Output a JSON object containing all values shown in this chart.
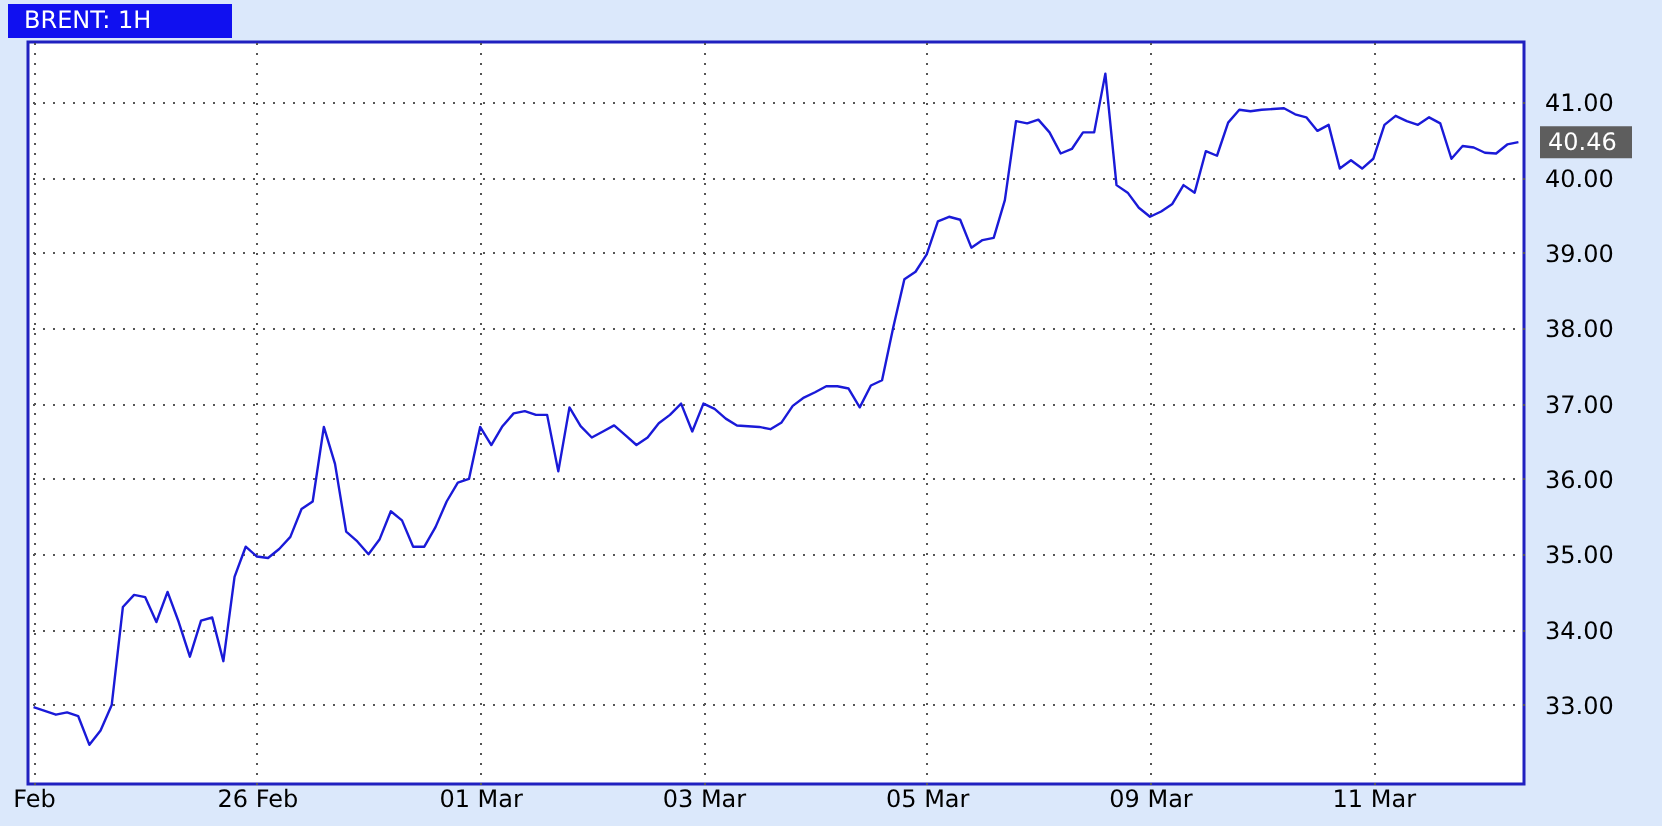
{
  "chart_data": {
    "type": "line",
    "title": "BRENT: 1H",
    "categories": [
      "Feb",
      null,
      null,
      null,
      null,
      null,
      null,
      null,
      null,
      null,
      null,
      null,
      null,
      null,
      null,
      null,
      null,
      null,
      null,
      null,
      "26 Feb",
      null,
      null,
      null,
      null,
      null,
      null,
      null,
      null,
      null,
      null,
      null,
      null,
      null,
      null,
      null,
      null,
      null,
      null,
      null,
      "01 Mar",
      null,
      null,
      null,
      null,
      null,
      null,
      null,
      null,
      null,
      null,
      null,
      null,
      null,
      null,
      null,
      null,
      null,
      null,
      null,
      "03 Mar",
      null,
      null,
      null,
      null,
      null,
      null,
      null,
      null,
      null,
      null,
      null,
      null,
      null,
      null,
      null,
      null,
      null,
      null,
      null,
      "05 Mar",
      null,
      null,
      null,
      null,
      null,
      null,
      null,
      null,
      null,
      null,
      null,
      null,
      null,
      null,
      null,
      null,
      null,
      null,
      null,
      "09 Mar",
      null,
      null,
      null,
      null,
      null,
      null,
      null,
      null,
      null,
      null,
      null,
      null,
      null,
      null,
      null,
      null,
      null,
      null,
      null,
      "11 Mar",
      null,
      null,
      null,
      null,
      null,
      null,
      null,
      null,
      null,
      null,
      null,
      null,
      null
    ],
    "series": [
      {
        "color": "#1a1ad8",
        "values": [
          32.97,
          32.92,
          32.87,
          32.9,
          32.85,
          32.47,
          32.66,
          33.0,
          34.3,
          34.46,
          34.43,
          34.1,
          34.5,
          34.1,
          33.64,
          34.12,
          34.16,
          33.58,
          34.7,
          35.1,
          34.97,
          34.95,
          35.07,
          35.23,
          35.6,
          35.7,
          36.69,
          36.2,
          35.3,
          35.17,
          35.0,
          35.2,
          35.57,
          35.45,
          35.1,
          35.1,
          35.36,
          35.7,
          35.95,
          36.0,
          36.69,
          36.45,
          36.7,
          36.87,
          36.9,
          36.85,
          36.85,
          36.1,
          36.95,
          36.7,
          36.55,
          36.63,
          36.71,
          36.58,
          36.45,
          36.55,
          36.74,
          36.85,
          37.0,
          36.63,
          37.0,
          36.93,
          36.8,
          36.71,
          36.7,
          36.69,
          36.66,
          36.75,
          36.97,
          37.08,
          37.15,
          37.23,
          37.23,
          37.2,
          36.95,
          37.24,
          37.31,
          38.01,
          38.65,
          38.75,
          38.98,
          39.42,
          39.48,
          39.44,
          39.07,
          39.17,
          39.2,
          39.7,
          40.75,
          40.72,
          40.77,
          40.6,
          40.32,
          40.38,
          40.6,
          40.6,
          41.38,
          39.9,
          39.8,
          39.6,
          39.48,
          39.55,
          39.65,
          39.9,
          39.8,
          40.35,
          40.29,
          40.73,
          40.9,
          40.88,
          40.9,
          40.91,
          40.92,
          40.84,
          40.8,
          40.62,
          40.7,
          40.12,
          40.23,
          40.12,
          40.25,
          40.7,
          40.82,
          40.75,
          40.7,
          40.8,
          40.72,
          40.25,
          40.42,
          40.4,
          40.33,
          40.32,
          40.44,
          40.47
        ]
      }
    ],
    "ylim": [
      31.95,
      41.8
    ],
    "yticks": [
      {
        "value": 33,
        "label": "33.00"
      },
      {
        "value": 34,
        "label": "34.00"
      },
      {
        "value": 35,
        "label": "35.00"
      },
      {
        "value": 36,
        "label": "36.00"
      },
      {
        "value": 37,
        "label": "37.00"
      },
      {
        "value": 38,
        "label": "38.00"
      },
      {
        "value": 39,
        "label": "39.00"
      },
      {
        "value": 40,
        "label": "40.00"
      },
      {
        "value": 41,
        "label": "41.00"
      }
    ],
    "grid": true,
    "annotations": [
      "40.46"
    ]
  }
}
